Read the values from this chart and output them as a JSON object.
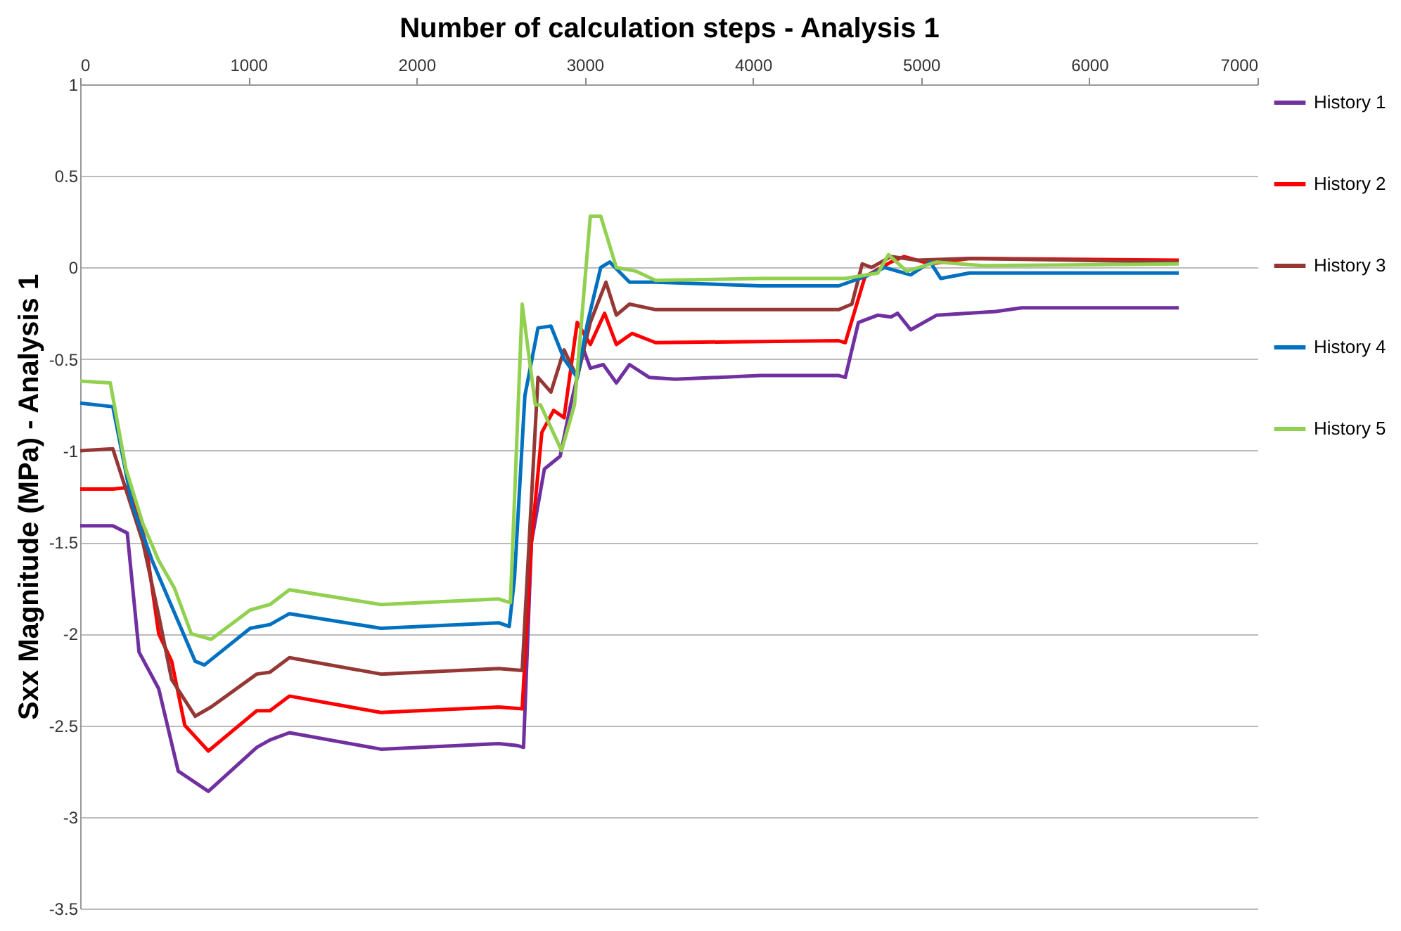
{
  "chart_data": {
    "type": "line",
    "xlabel": "Number of calculation steps - Analysis 1",
    "ylabel": "Sxx Magnitude (MPa) - Analysis 1",
    "xlim": [
      0,
      7000
    ],
    "xticks": [
      0,
      1000,
      2000,
      3000,
      4000,
      5000,
      6000,
      7000
    ],
    "ylim": [
      -3.5,
      1
    ],
    "yticks": [
      -3.5,
      -3,
      -2.5,
      -2,
      -1.5,
      -1,
      -0.5,
      0,
      0.5,
      1
    ],
    "grid": "y",
    "legend": "right",
    "marker": "none",
    "line_style": "solid",
    "series": [
      {
        "name": "History 1",
        "color": "#7030a0",
        "x": [
          0,
          194,
          280,
          350,
          467,
          583,
          762,
          1050,
          1128,
          1244,
          1788,
          2488,
          2597,
          2636,
          2683,
          2760,
          2854,
          2916,
          2994,
          3033,
          3110,
          3188,
          3266,
          3383,
          3538,
          4044,
          4510,
          4549,
          4627,
          4743,
          4821,
          4860,
          4938,
          5093,
          5443,
          5599,
          6532
        ],
        "values": [
          -1.41,
          -1.41,
          -1.45,
          -2.1,
          -2.3,
          -2.75,
          -2.86,
          -2.62,
          -2.58,
          -2.54,
          -2.63,
          -2.6,
          -2.61,
          -2.62,
          -1.5,
          -1.1,
          -1.03,
          -0.75,
          -0.45,
          -0.55,
          -0.53,
          -0.63,
          -0.53,
          -0.6,
          -0.61,
          -0.59,
          -0.59,
          -0.6,
          -0.3,
          -0.26,
          -0.27,
          -0.25,
          -0.34,
          -0.26,
          -0.24,
          -0.22,
          -0.22
        ]
      },
      {
        "name": "History 2",
        "color": "#ff0000",
        "x": [
          0,
          194,
          295,
          389,
          467,
          544,
          622,
          762,
          1050,
          1128,
          1244,
          1788,
          2488,
          2628,
          2683,
          2745,
          2815,
          2877,
          2955,
          3033,
          3118,
          3188,
          3281,
          3421,
          4510,
          4549,
          4666,
          4821,
          4899,
          5054,
          5288,
          6532
        ],
        "values": [
          -1.21,
          -1.21,
          -1.2,
          -1.5,
          -2.0,
          -2.15,
          -2.5,
          -2.64,
          -2.42,
          -2.42,
          -2.34,
          -2.43,
          -2.4,
          -2.41,
          -1.5,
          -0.9,
          -0.78,
          -0.82,
          -0.3,
          -0.42,
          -0.25,
          -0.42,
          -0.36,
          -0.41,
          -0.4,
          -0.41,
          -0.05,
          0.03,
          0.06,
          0.02,
          0.05,
          0.04
        ]
      },
      {
        "name": "History 3",
        "color": "#953735",
        "x": [
          0,
          194,
          373,
          467,
          544,
          684,
          778,
          1050,
          1128,
          1244,
          1788,
          2488,
          2628,
          2722,
          2799,
          2877,
          2955,
          3033,
          3126,
          3188,
          3266,
          3421,
          4510,
          4588,
          4650,
          4705,
          4821,
          4977,
          5288,
          6532
        ],
        "values": [
          -1.0,
          -0.99,
          -1.5,
          -1.9,
          -2.25,
          -2.45,
          -2.4,
          -2.22,
          -2.21,
          -2.13,
          -2.22,
          -2.19,
          -2.2,
          -0.6,
          -0.68,
          -0.45,
          -0.6,
          -0.3,
          -0.08,
          -0.26,
          -0.2,
          -0.23,
          -0.23,
          -0.2,
          0.02,
          0.0,
          0.06,
          0.04,
          0.05,
          0.03
        ]
      },
      {
        "name": "History 4",
        "color": "#0070c0",
        "x": [
          0,
          194,
          311,
          428,
          544,
          684,
          739,
          1011,
          1128,
          1244,
          1788,
          2488,
          2551,
          2582,
          2644,
          2722,
          2799,
          2877,
          2955,
          3017,
          3095,
          3149,
          3266,
          3421,
          4044,
          4510,
          4666,
          4782,
          4938,
          5054,
          5117,
          5288,
          6532
        ],
        "values": [
          -0.74,
          -0.76,
          -1.3,
          -1.6,
          -1.85,
          -2.15,
          -2.17,
          -1.97,
          -1.95,
          -1.89,
          -1.97,
          -1.94,
          -1.96,
          -1.7,
          -0.7,
          -0.33,
          -0.32,
          -0.5,
          -0.6,
          -0.3,
          0.0,
          0.03,
          -0.08,
          -0.08,
          -0.1,
          -0.1,
          -0.05,
          0.0,
          -0.04,
          0.03,
          -0.06,
          -0.03,
          -0.03
        ]
      },
      {
        "name": "History 5",
        "color": "#92d050",
        "x": [
          0,
          179,
          272,
          373,
          467,
          560,
          661,
          778,
          1011,
          1128,
          1244,
          1788,
          2488,
          2558,
          2628,
          2706,
          2737,
          2862,
          2939,
          3033,
          3095,
          3188,
          3305,
          3421,
          4044,
          4549,
          4743,
          4806,
          4914,
          5093,
          5365,
          6532
        ],
        "values": [
          -0.62,
          -0.63,
          -1.1,
          -1.4,
          -1.6,
          -1.75,
          -2.0,
          -2.03,
          -1.87,
          -1.84,
          -1.76,
          -1.84,
          -1.81,
          -1.83,
          -0.2,
          -0.75,
          -0.75,
          -1.0,
          -0.75,
          0.28,
          0.28,
          0.0,
          -0.02,
          -0.07,
          -0.06,
          -0.06,
          -0.03,
          0.07,
          -0.02,
          0.03,
          0.01,
          0.02
        ]
      }
    ]
  }
}
